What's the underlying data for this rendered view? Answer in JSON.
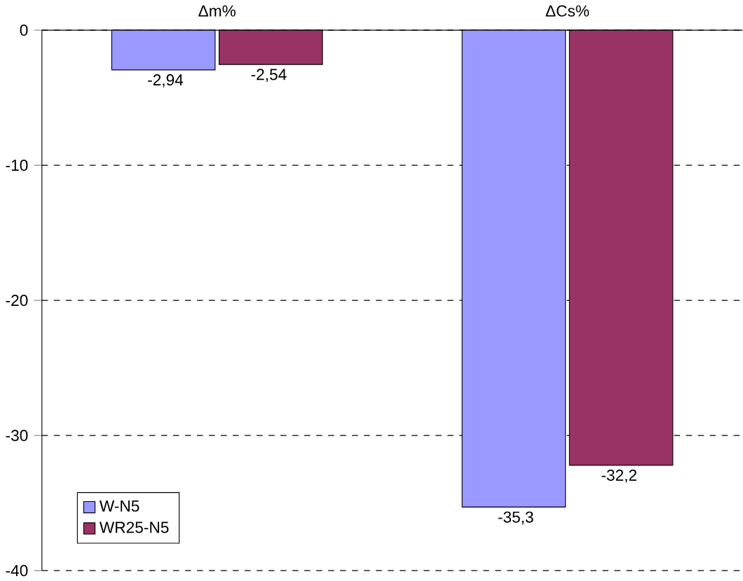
{
  "chart_data": {
    "type": "bar",
    "categories": [
      "Δm%",
      "ΔCs%"
    ],
    "series": [
      {
        "name": "W-N5",
        "color": "#9999ff",
        "values": [
          -2.94,
          -35.3
        ],
        "value_labels": [
          "-2,94",
          "-35,3"
        ]
      },
      {
        "name": "WR25-N5",
        "color": "#993366",
        "values": [
          -2.54,
          -32.2
        ],
        "value_labels": [
          "-2,54",
          "-32,2"
        ]
      }
    ],
    "ylim": [
      -40,
      0
    ],
    "yticks": [
      0,
      -10,
      -20,
      -30,
      -40
    ],
    "grid": "y",
    "legend": "bottom left"
  }
}
